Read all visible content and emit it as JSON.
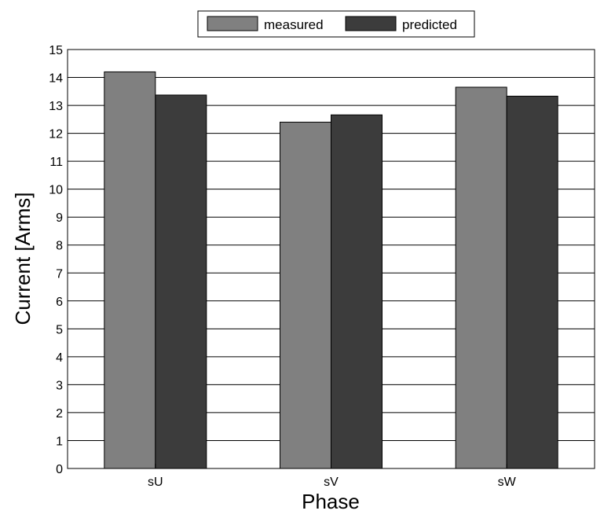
{
  "chart_data": {
    "type": "bar",
    "categories": [
      "sU",
      "sV",
      "sW"
    ],
    "series": [
      {
        "name": "measured",
        "values": [
          14.2,
          12.4,
          13.65
        ],
        "color": "#808080"
      },
      {
        "name": "predicted",
        "values": [
          13.37,
          12.66,
          13.33
        ],
        "color": "#3c3c3c"
      }
    ],
    "xlabel": "Phase",
    "ylabel": "Current [Arms]",
    "ylim": [
      0,
      15
    ],
    "yticks": [
      0,
      1,
      2,
      3,
      4,
      5,
      6,
      7,
      8,
      9,
      10,
      11,
      12,
      13,
      14,
      15
    ],
    "grid": true,
    "legend_position": "top-center"
  }
}
